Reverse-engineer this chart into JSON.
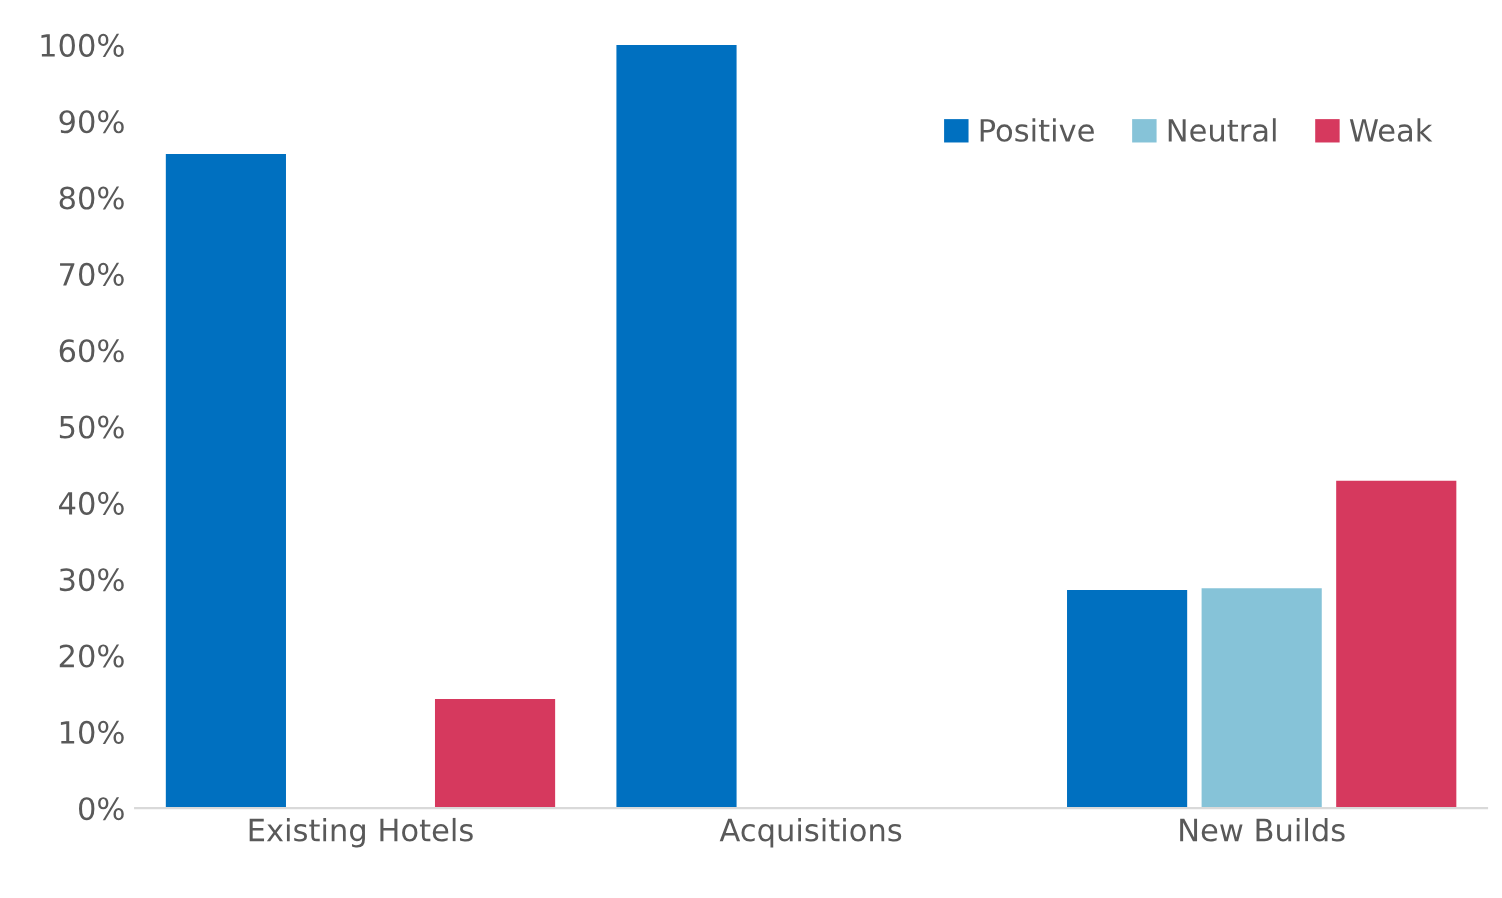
{
  "chart_data": {
    "type": "bar",
    "categories": [
      "Existing Hotels",
      "Acquisitions",
      "New Builds"
    ],
    "series": [
      {
        "name": "Positive",
        "color": "#0070c0",
        "values": [
          85.7,
          100,
          28.6
        ]
      },
      {
        "name": "Neutral",
        "color": "#86c3d8",
        "values": [
          0,
          0,
          28.8
        ]
      },
      {
        "name": "Weak",
        "color": "#d6395e",
        "values": [
          14.3,
          0,
          42.9
        ]
      }
    ],
    "ylim": [
      0,
      100
    ],
    "yticks": [
      {
        "value": 0,
        "label": "0%"
      },
      {
        "value": 10,
        "label": "10%"
      },
      {
        "value": 20,
        "label": "20%"
      },
      {
        "value": 30,
        "label": "30%"
      },
      {
        "value": 40,
        "label": "40%"
      },
      {
        "value": 50,
        "label": "50%"
      },
      {
        "value": 60,
        "label": "60%"
      },
      {
        "value": 70,
        "label": "70%"
      },
      {
        "value": 80,
        "label": "80%"
      },
      {
        "value": 90,
        "label": "90%"
      },
      {
        "value": 100,
        "label": "100%"
      }
    ],
    "grid": false,
    "legend": "top right"
  }
}
